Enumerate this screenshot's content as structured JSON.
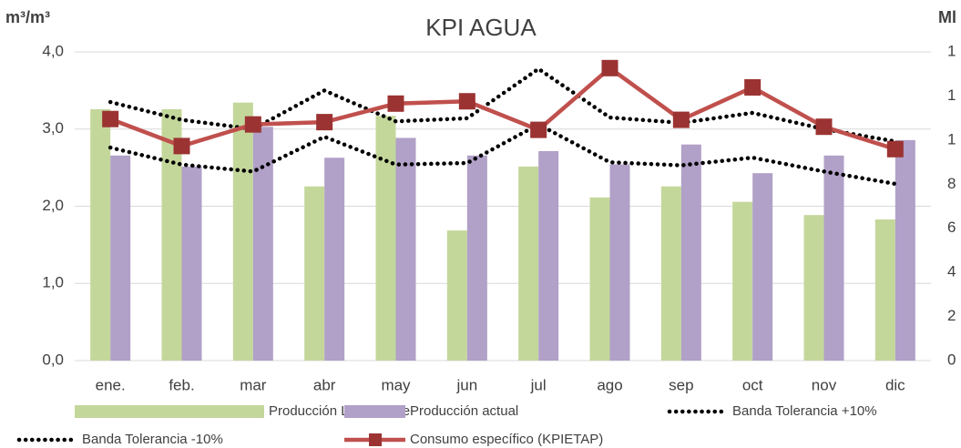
{
  "chart_data": {
    "type": "combo",
    "title": "KPI AGUA",
    "y_label": "m³/m³",
    "y2_label": "Ml",
    "categories": [
      "ene.",
      "feb.",
      "mar",
      "abr",
      "may",
      "jun",
      "jul",
      "ago",
      "sep",
      "oct",
      "nov",
      "dic"
    ],
    "ylim": [
      0,
      4
    ],
    "yticks": [
      {
        "value": 0,
        "label": "0,0"
      },
      {
        "value": 1,
        "label": "1,0"
      },
      {
        "value": 2,
        "label": "2,0"
      },
      {
        "value": 3,
        "label": "3,0"
      },
      {
        "value": 4,
        "label": "4,0"
      }
    ],
    "y2lim": [
      0,
      14
    ],
    "y2ticks": [
      0,
      2,
      4,
      6,
      8,
      {
        "value": 10,
        "label": "1"
      },
      {
        "value": 12,
        "label": "1"
      },
      {
        "value": 14,
        "label": "1"
      }
    ],
    "series": [
      {
        "name": "Producción Línea Base",
        "kind": "bar",
        "axis": "y2",
        "color": "#c4d79b",
        "values": [
          11.4,
          11.4,
          11.7,
          7.9,
          11.1,
          5.9,
          8.8,
          7.4,
          7.9,
          7.2,
          6.6,
          6.4
        ]
      },
      {
        "name": "Producción actual",
        "kind": "bar",
        "axis": "y2",
        "color": "#b1a0c7",
        "values": [
          9.3,
          8.8,
          10.6,
          9.2,
          10.1,
          9.3,
          9.5,
          8.9,
          9.8,
          8.5,
          9.3,
          10.0
        ]
      },
      {
        "name": "Banda Tolerancia +10%",
        "kind": "dotted",
        "color": "#000000",
        "values": [
          3.35,
          3.12,
          3.0,
          3.5,
          3.1,
          3.14,
          3.78,
          3.15,
          3.08,
          3.21,
          3.0,
          2.84
        ]
      },
      {
        "name": "Banda Tolerancia -10%",
        "kind": "dotted",
        "color": "#000000",
        "values": [
          2.76,
          2.54,
          2.45,
          2.9,
          2.54,
          2.56,
          3.06,
          2.57,
          2.53,
          2.63,
          2.45,
          2.29
        ]
      },
      {
        "name": "Consumo específico (KPIETAP)",
        "kind": "line",
        "color": "#c0504d",
        "values": [
          3.13,
          2.78,
          3.06,
          3.09,
          3.33,
          3.36,
          2.99,
          3.79,
          3.12,
          3.54,
          3.03,
          2.74
        ]
      }
    ]
  }
}
